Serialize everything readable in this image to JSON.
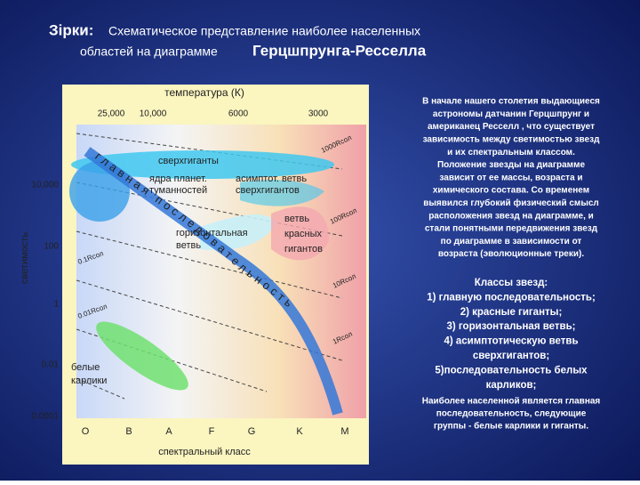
{
  "title": {
    "prefix": "Зірки:",
    "line1": "Схематическое представление наиболее населенных",
    "line2_small": "областей на диаграмме",
    "line2_large": "Герцшпрунга-Ресселла"
  },
  "diagram": {
    "top_axis_label": "температура (К)",
    "temperatures": [
      "25,000",
      "10,000",
      "6000",
      "3000"
    ],
    "y_axis_label": "светимость",
    "luminosities": [
      "10,000",
      "100",
      "1",
      "0.01",
      "0.0001"
    ],
    "spectral_classes": [
      "O",
      "B",
      "A",
      "F",
      "G",
      "K",
      "M"
    ],
    "x_axis_label": "спектральный класс",
    "radius_lines": [
      "1000Rсол",
      "100Rсол",
      "10Rсол",
      "1Rсол",
      "0.1Rсол",
      "0.01Rсол"
    ],
    "main_sequence": "главная последовательность",
    "regions": {
      "supergiants": "сверхгиганты",
      "nuclei": [
        "ядра планет.",
        "туманностей"
      ],
      "agb": [
        "асимптот. ветвь",
        "сверхгигантов"
      ],
      "horizontal": [
        "горизонтальная",
        "ветвь"
      ],
      "red_giants": [
        "ветвь",
        "красных",
        "гигантов"
      ],
      "white_dwarfs": [
        "белые",
        "карлики"
      ]
    }
  },
  "text": {
    "intro": [
      "В начале нашего столетия выдающиеся",
      "астрономы датчанин Герцшпрунг и",
      "американец Ресселл , что существует",
      "зависимость между светимостью звезд",
      "и их спектральным классом.",
      "Положение звезды на диаграмме",
      "зависит от ее массы, возраста и",
      "химического состава. Со временем",
      "выявился глубокий физический смысл",
      "расположения звезд на диаграмме, и",
      "стали понятными передвижения звезд",
      "по диаграмме в зависимости от",
      "возраста (эволюционные треки)."
    ],
    "classes": [
      "Классы звезд:",
      "1) главную последовательность;",
      "2) красные гиганты;",
      "3) горизонтальная ветвь;",
      "4) асимптотическую ветвь",
      "сверхгигантов;",
      "5)последовательность белых",
      "карликов;"
    ],
    "conclusion": [
      "Наиболее населенной является главная",
      "последовательность, следующие",
      "группы - белые карлики и гиганты."
    ]
  }
}
